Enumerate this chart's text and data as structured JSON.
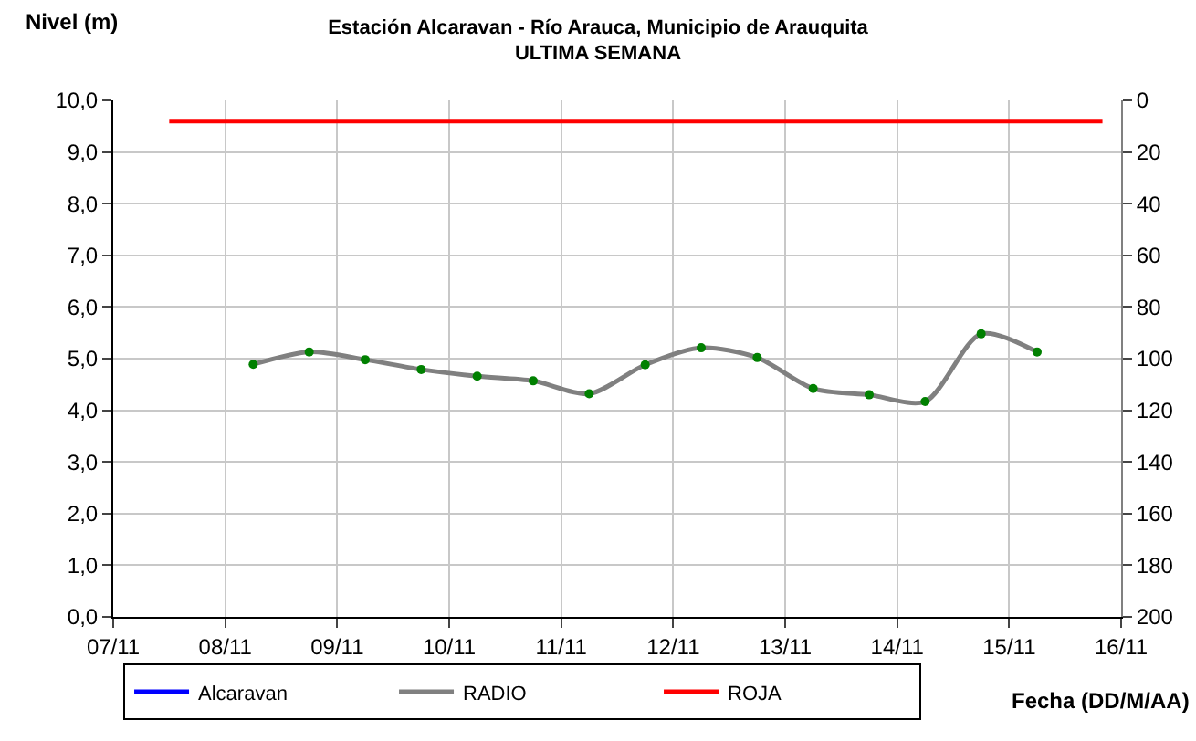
{
  "chart_data": {
    "type": "line",
    "title": "Estación Alcaravan - Río Arauca, Municipio de Arauquita",
    "subtitle": "ULTIMA SEMANA",
    "ylabel": "Nivel (m)",
    "xlabel": "Fecha (DD/M/AA)",
    "xlim": [
      "--11-07",
      "--11-16"
    ],
    "xticks": [
      {
        "value": "--11-07",
        "label": "07/11"
      },
      {
        "value": "--11-08",
        "label": "08/11"
      },
      {
        "value": "--11-09",
        "label": "09/11"
      },
      {
        "value": "--11-10",
        "label": "10/11"
      },
      {
        "value": "--11-11",
        "label": "11/11"
      },
      {
        "value": "--11-12",
        "label": "12/11"
      },
      {
        "value": "--11-13",
        "label": "13/11"
      },
      {
        "value": "--11-14",
        "label": "14/11"
      },
      {
        "value": "--11-15",
        "label": "15/11"
      },
      {
        "value": "--11-16",
        "label": "16/11"
      }
    ],
    "ylim": [
      0,
      10
    ],
    "yticks": [
      {
        "value": 0,
        "label": "0,0"
      },
      {
        "value": 1,
        "label": "1,0"
      },
      {
        "value": 2,
        "label": "2,0"
      },
      {
        "value": 3,
        "label": "3,0"
      },
      {
        "value": 4,
        "label": "4,0"
      },
      {
        "value": 5,
        "label": "5,0"
      },
      {
        "value": 6,
        "label": "6,0"
      },
      {
        "value": 7,
        "label": "7,0"
      },
      {
        "value": 8,
        "label": "8,0"
      },
      {
        "value": 9,
        "label": "9,0"
      },
      {
        "value": 10,
        "label": "10,0"
      }
    ],
    "y2lim": [
      200,
      0
    ],
    "y2ticks": [
      0,
      20,
      40,
      60,
      80,
      100,
      120,
      140,
      160,
      180,
      200
    ],
    "grid": true,
    "legend": "bottom",
    "series": [
      {
        "name": "Alcaravan",
        "color": "#0000ff",
        "marker": "none"
      },
      {
        "name": "RADIO",
        "color": "#808080",
        "marker": "circle",
        "colors": [
          "#008000",
          "#008000",
          "#008000",
          "#008000",
          "#008000",
          "#008000",
          "#008000",
          "#008000",
          "#008000",
          "#008000",
          "#008000",
          "#008000",
          "#008000",
          "#008000",
          "#008000"
        ],
        "x": [
          "--11-08T06:00",
          "--11-08T18:00",
          "--11-09T06:00",
          "--11-09T18:00",
          "--11-10T06:00",
          "--11-10T18:00",
          "--11-11T06:00",
          "--11-11T18:00",
          "--11-12T06:00",
          "--11-12T18:00",
          "--11-13T06:00",
          "--11-13T18:00",
          "--11-14T06:00",
          "--11-14T18:00",
          "--11-15T06:00"
        ],
        "values": [
          4.89,
          5.13,
          4.98,
          4.79,
          4.66,
          4.57,
          4.32,
          4.88,
          5.21,
          5.02,
          4.42,
          4.3,
          4.17,
          5.48,
          5.13
        ]
      },
      {
        "name": "ROJA",
        "color": "#ff0000",
        "marker": "none",
        "x": [
          "--11-07T12:00",
          "--11-15T20:00"
        ],
        "values": [
          9.6,
          9.6
        ]
      }
    ]
  }
}
